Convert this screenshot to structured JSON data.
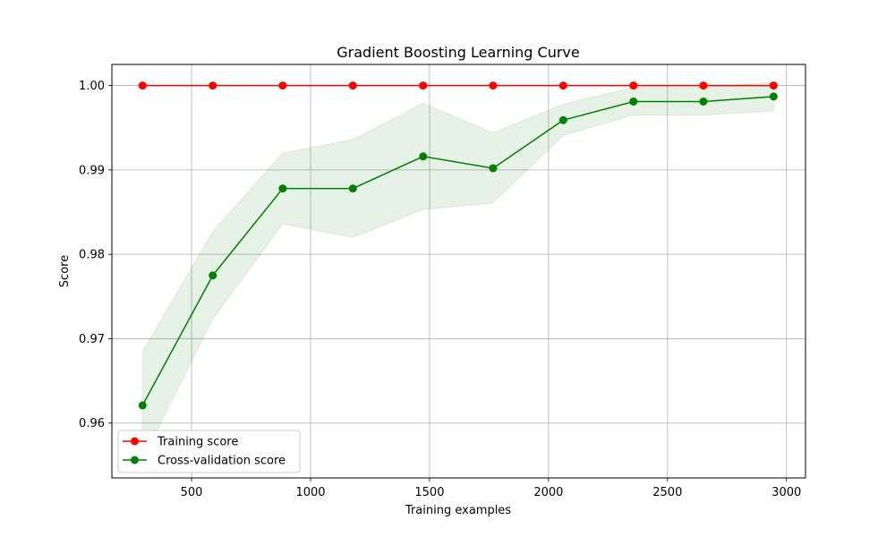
{
  "chart_data": {
    "type": "line",
    "title": "Gradient Boosting Learning Curve",
    "xlabel": "Training examples",
    "ylabel": "Score",
    "xlim": [
      165,
      3080
    ],
    "ylim": [
      0.9535,
      1.0025
    ],
    "xticks": [
      500,
      1000,
      1500,
      2000,
      2500,
      3000
    ],
    "xtick_labels": [
      "500",
      "1000",
      "1500",
      "2000",
      "2500",
      "3000"
    ],
    "yticks": [
      0.96,
      0.97,
      0.98,
      0.99,
      1.0
    ],
    "ytick_labels": [
      "0.96",
      "0.97",
      "0.98",
      "0.99",
      "1.00"
    ],
    "grid": true,
    "legend_position": "lower-left",
    "x": [
      294,
      589,
      883,
      1178,
      1473,
      1767,
      2062,
      2357,
      2651,
      2946
    ],
    "series": [
      {
        "name": "Training score",
        "color": "#ff0000",
        "values": [
          1.0,
          1.0,
          1.0,
          1.0,
          1.0,
          1.0,
          1.0,
          1.0,
          1.0,
          1.0
        ],
        "band_lower": [
          1.0,
          1.0,
          1.0,
          1.0,
          1.0,
          1.0,
          1.0,
          1.0,
          1.0,
          1.0
        ],
        "band_upper": [
          1.0,
          1.0,
          1.0,
          1.0,
          1.0,
          1.0,
          1.0,
          1.0,
          1.0,
          1.0
        ]
      },
      {
        "name": "Cross-validation score",
        "color": "#008000",
        "values": [
          0.9621,
          0.9775,
          0.9878,
          0.9878,
          0.9916,
          0.9902,
          0.9959,
          0.9981,
          0.9981,
          0.9987
        ],
        "band_lower": [
          0.9557,
          0.9723,
          0.9836,
          0.982,
          0.9853,
          0.9861,
          0.9941,
          0.9965,
          0.9965,
          0.997
        ],
        "band_upper": [
          0.9685,
          0.9827,
          0.992,
          0.9936,
          0.9979,
          0.9944,
          0.9978,
          0.9998,
          0.9998,
          1.0004
        ],
        "band_color": "#008000"
      }
    ]
  }
}
